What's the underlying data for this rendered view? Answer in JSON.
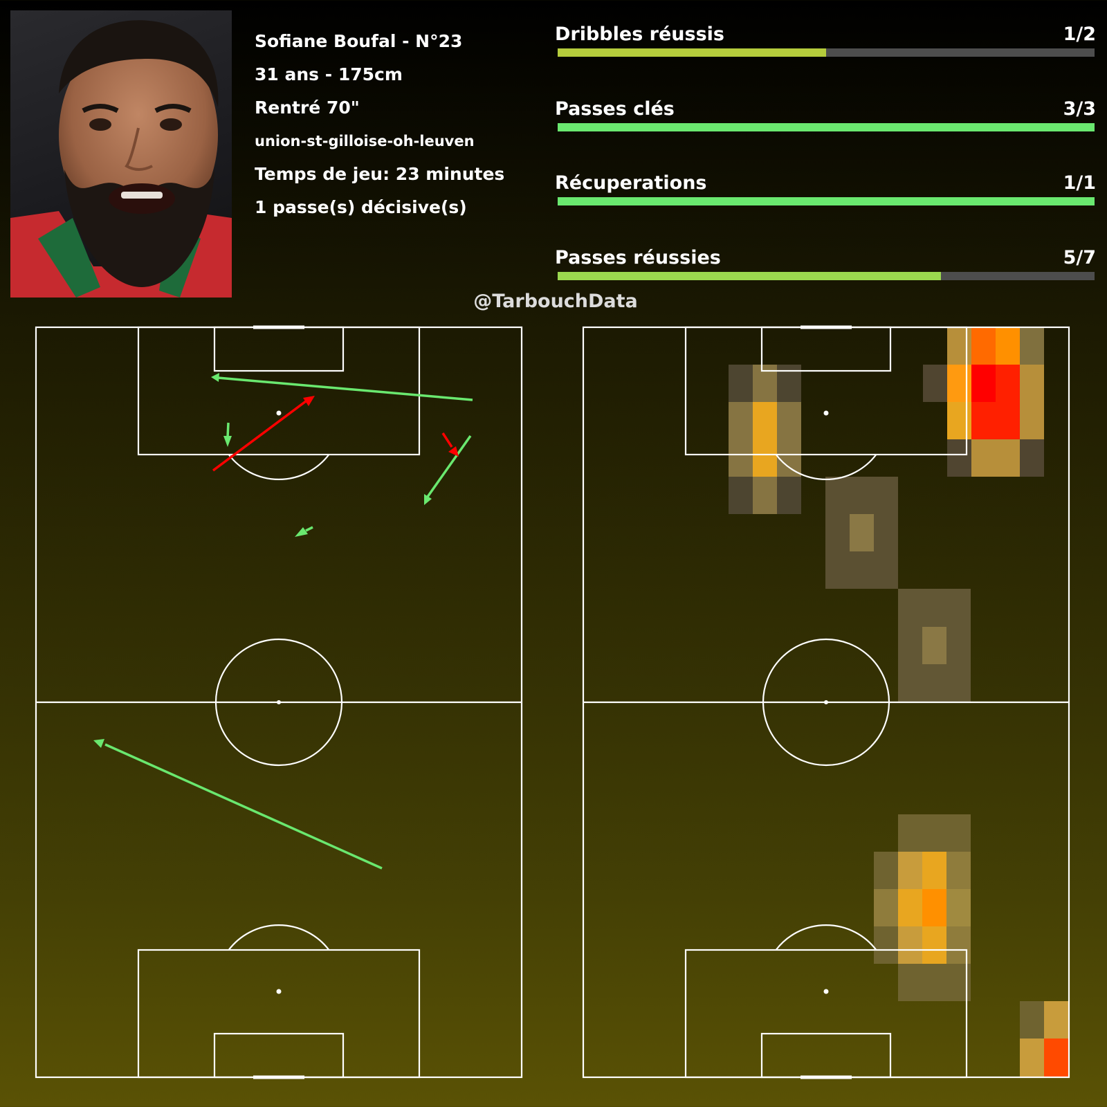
{
  "player": {
    "name_line": "Sofiane Boufal - N°23",
    "age_height": "31 ans - 175cm",
    "sub_info": "Rentré 70\"",
    "match": "union-st-gilloise-oh-leuven",
    "minutes": "Temps de jeu: 23 minutes",
    "assists": "1 passe(s) décisive(s)"
  },
  "stats": [
    {
      "label": "Dribbles réussis",
      "value": "1/2",
      "success": 1,
      "total": 2,
      "color": "#b5cc3c"
    },
    {
      "label": "Passes clés",
      "value": "3/3",
      "success": 3,
      "total": 3,
      "color": "#6ae86f"
    },
    {
      "label": "Récuperations",
      "value": "1/1",
      "success": 1,
      "total": 1,
      "color": "#6ae86f"
    },
    {
      "label": "Passes réussies",
      "value": "5/7",
      "success": 5,
      "total": 7,
      "color": "#9bd84f"
    }
  ],
  "handle": "@TarbouchData",
  "colors": {
    "success": "#6ae86f",
    "fail": "#ff0000",
    "lines": "#ffffff"
  }
}
